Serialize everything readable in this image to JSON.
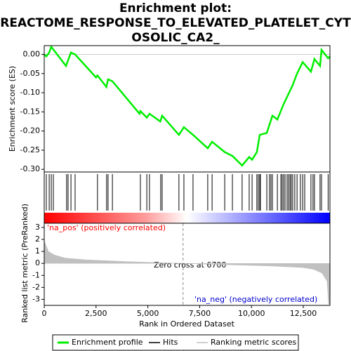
{
  "chart_data": {
    "type": "line",
    "title": [
      "Enrichment plot:",
      "REACTOME_RESPONSE_TO_ELEVATED_PLATELET_CYT",
      "OSOLIC_CA2_"
    ],
    "ylabel": "Enrichment score (ES)",
    "y2label": "Ranked list metric (PreRanked)",
    "xlabel": "Rank in Ordered Dataset",
    "annotations": [
      "'na_pos' (positively correlated)",
      "'na_neg' (negatively correlated)",
      "Zero cross at 6700"
    ],
    "zero_cross": 6700,
    "xlim": [
      0,
      13787
    ],
    "xticks": [
      0,
      {
        "value": 2500,
        "label": "2,500"
      },
      {
        "value": 5000,
        "label": "5,000"
      },
      {
        "value": 7500,
        "label": "7,500"
      },
      {
        "value": 10000,
        "label": "10,000"
      },
      {
        "value": 12500,
        "label": "12,500"
      }
    ],
    "ylim": [
      -0.307,
      0.023
    ],
    "yticks": [
      {
        "value": 0,
        "label": "0.00"
      },
      {
        "value": -0.05,
        "label": "-0.05"
      },
      {
        "value": -0.1,
        "label": "-0.10"
      },
      {
        "value": -0.15,
        "label": "-0.15"
      },
      {
        "value": -0.2,
        "label": "-0.20"
      },
      {
        "value": -0.25,
        "label": "-0.25"
      },
      {
        "value": -0.3,
        "label": "-0.30"
      }
    ],
    "y2lim": [
      -3.5,
      3.35
    ],
    "y2ticks": [
      3,
      2,
      1,
      0,
      -1,
      -2,
      -3
    ],
    "series": [
      {
        "name": "Enrichment profile",
        "color": "#00ee00",
        "x": [
          0,
          100,
          240,
          340,
          1050,
          1290,
          1490,
          2500,
          2570,
          3000,
          3080,
          3290,
          4600,
          4640,
          4950,
          5080,
          5600,
          5690,
          6500,
          6740,
          7180,
          7890,
          8100,
          8710,
          9080,
          9550,
          9890,
          10030,
          10260,
          10400,
          10740,
          11010,
          11250,
          11550,
          11990,
          12200,
          12470,
          12870,
          13040,
          13310,
          13380,
          13700,
          13787
        ],
        "values": [
          0,
          -0.005,
          0.005,
          0.02,
          -0.03,
          0.005,
          0.0,
          -0.06,
          -0.055,
          -0.085,
          -0.065,
          -0.07,
          -0.155,
          -0.148,
          -0.165,
          -0.155,
          -0.175,
          -0.16,
          -0.21,
          -0.19,
          -0.21,
          -0.245,
          -0.228,
          -0.255,
          -0.265,
          -0.29,
          -0.268,
          -0.275,
          -0.255,
          -0.21,
          -0.205,
          -0.16,
          -0.17,
          -0.13,
          -0.08,
          -0.05,
          -0.02,
          -0.045,
          -0.012,
          -0.03,
          0.012,
          -0.01,
          -0.005
        ]
      },
      {
        "name": "Hits",
        "color": "#000000",
        "x": [
          100,
          240,
          340,
          440,
          1080,
          1150,
          1290,
          1490,
          2570,
          3010,
          3080,
          3290,
          4640,
          4950,
          5080,
          5620,
          5690,
          6500,
          6740,
          7180,
          7890,
          8100,
          8710,
          9080,
          9550,
          9890,
          10030,
          10260,
          10330,
          10400,
          10430,
          10740,
          10870,
          10940,
          11010,
          11250,
          11420,
          11480,
          11550,
          11620,
          11720,
          11790,
          11860,
          11920,
          11990,
          12090,
          12200,
          12360,
          12470,
          12570,
          12870,
          12970,
          13040,
          13310,
          13380,
          13700
        ]
      },
      {
        "name": "Ranking metric scores",
        "color": "#c0c0c0",
        "axis": "y2",
        "x": [
          0,
          200,
          500,
          1000,
          2000,
          4000,
          6700,
          9000,
          11000,
          12500,
          13000,
          13400,
          13650,
          13720,
          13787
        ],
        "values": [
          1.9,
          1.0,
          0.7,
          0.45,
          0.3,
          0.15,
          0,
          -0.12,
          -0.22,
          -0.35,
          -0.5,
          -0.8,
          -1.5,
          -3.4,
          -3.4
        ]
      }
    ]
  }
}
